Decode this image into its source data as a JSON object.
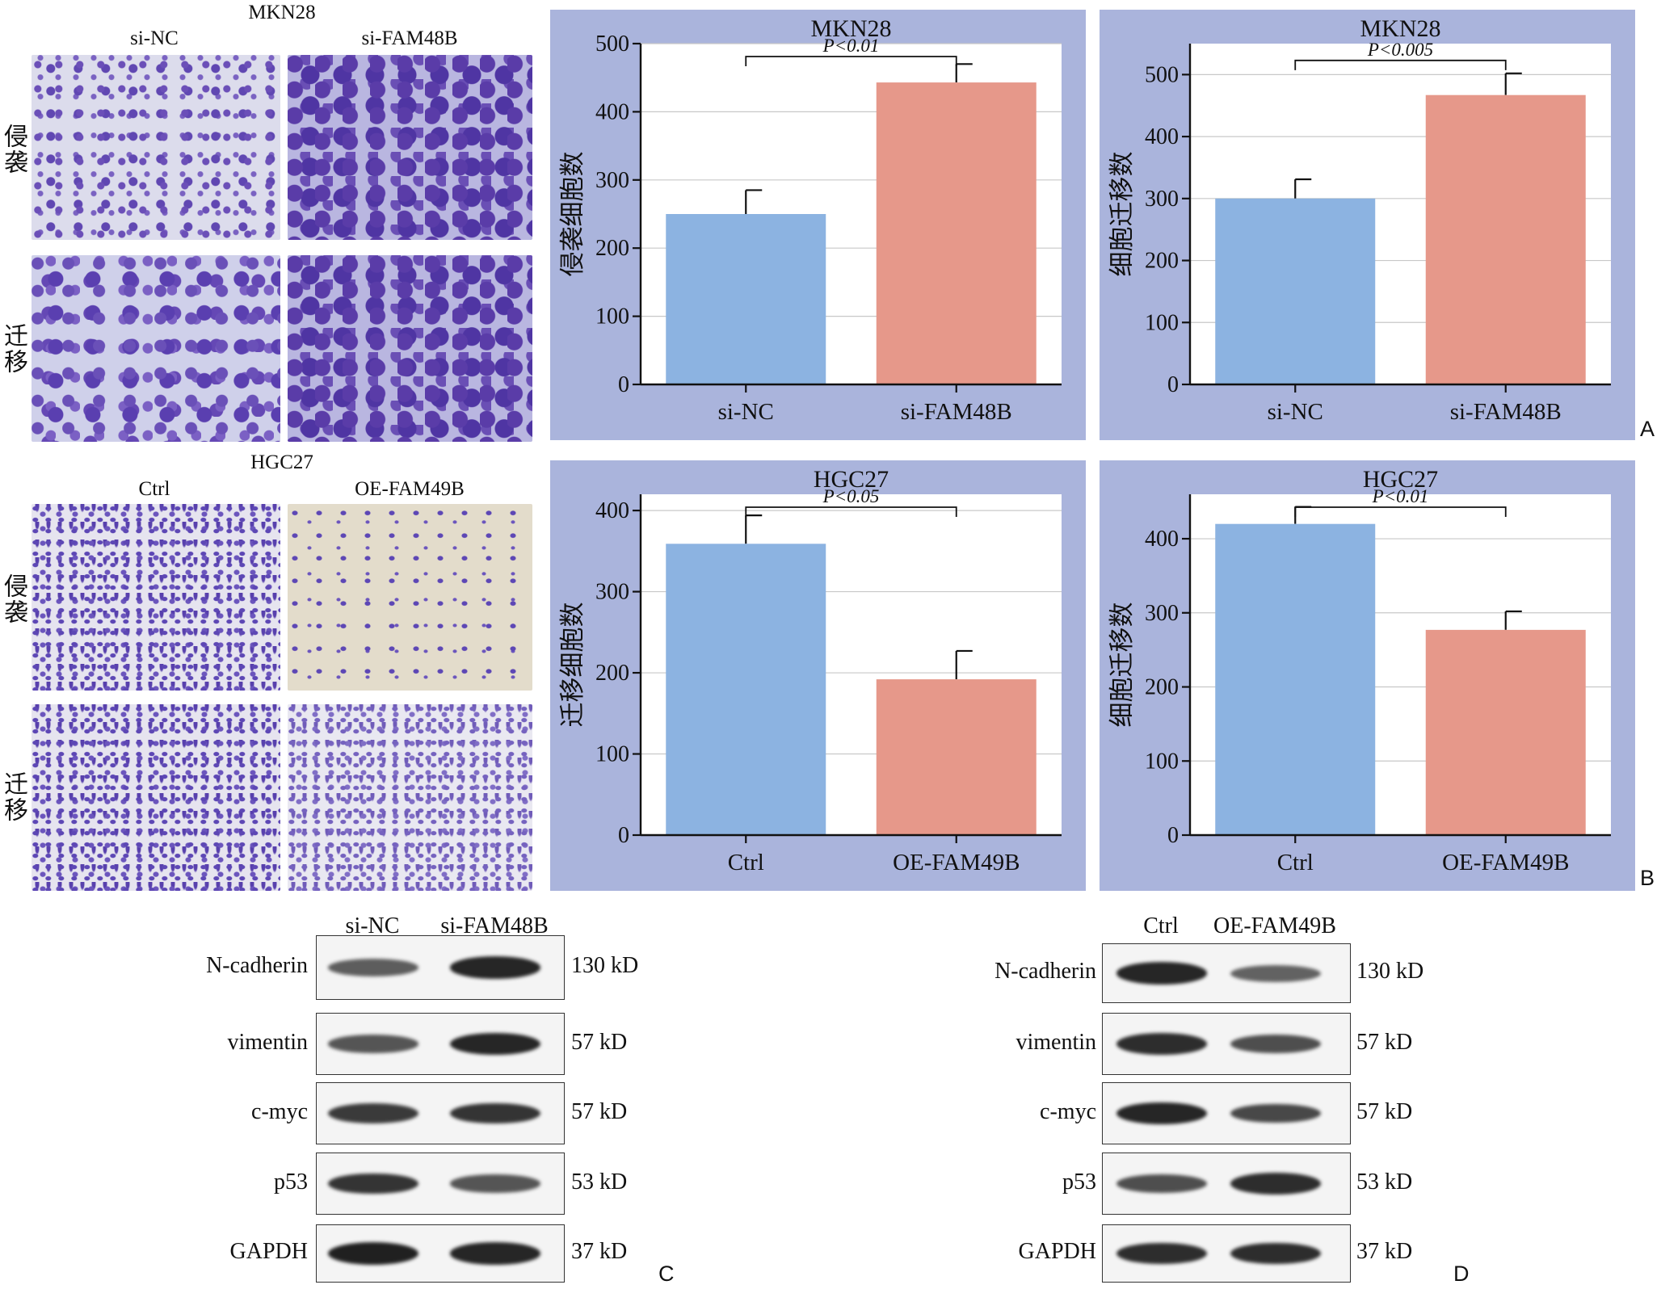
{
  "micrographs": {
    "top": {
      "title": "MKN28",
      "col_labels": [
        "si-NC",
        "si-FAM48B"
      ],
      "row_labels": [
        "侵袭",
        "迁移"
      ]
    },
    "bottom": {
      "title": "HGC27",
      "col_labels": [
        "Ctrl",
        "OE-FAM49B"
      ],
      "row_labels": [
        "侵袭",
        "迁移"
      ]
    }
  },
  "panel_letters": [
    "A",
    "B",
    "C",
    "D"
  ],
  "chart_data": [
    {
      "type": "bar",
      "title": "MKN28",
      "ylabel": "侵袭细胞数",
      "categories": [
        "si-NC",
        "si-FAM48B"
      ],
      "values": [
        250,
        443
      ],
      "errors": [
        35,
        27
      ],
      "ylim": [
        0,
        500
      ],
      "yticks": [
        0,
        100,
        200,
        300,
        400,
        500
      ],
      "significance": "P<0.01",
      "colors": [
        "#8cb3e1",
        "#e6988a"
      ],
      "grid": true
    },
    {
      "type": "bar",
      "title": "MKN28",
      "ylabel": "细胞迁移数",
      "categories": [
        "si-NC",
        "si-FAM48B"
      ],
      "values": [
        300,
        467
      ],
      "errors": [
        31,
        35
      ],
      "ylim": [
        0,
        550
      ],
      "yticks": [
        0,
        100,
        200,
        300,
        400,
        500
      ],
      "significance": "P<0.005",
      "colors": [
        "#8cb3e1",
        "#e6988a"
      ],
      "grid": true
    },
    {
      "type": "bar",
      "title": "HGC27",
      "ylabel": "迁移细胞数",
      "categories": [
        "Ctrl",
        "OE-FAM49B"
      ],
      "values": [
        359,
        192
      ],
      "errors": [
        35,
        35
      ],
      "ylim": [
        0,
        420
      ],
      "yticks": [
        0,
        100,
        200,
        300,
        400
      ],
      "significance": "P<0.05",
      "colors": [
        "#8cb3e1",
        "#e6988a"
      ],
      "grid": true
    },
    {
      "type": "bar",
      "title": "HGC27",
      "ylabel": "细胞迁移数",
      "categories": [
        "Ctrl",
        "OE-FAM49B"
      ],
      "values": [
        420,
        277
      ],
      "errors": [
        23,
        25
      ],
      "ylim": [
        0,
        460
      ],
      "yticks": [
        0,
        100,
        200,
        300,
        400
      ],
      "significance": "P<0.01",
      "colors": [
        "#8cb3e1",
        "#e6988a"
      ],
      "grid": true
    }
  ],
  "blots": {
    "C": {
      "lanes": [
        "si-NC",
        "si-FAM48B"
      ],
      "proteins": [
        "N-cadherin",
        "vimentin",
        "c-myc",
        "p53",
        "GAPDH"
      ],
      "sizes": [
        "130 kD",
        "57 kD",
        "57 kD",
        "53 kD",
        "37 kD"
      ],
      "intensities": [
        [
          0.55,
          0.95
        ],
        [
          0.6,
          0.95
        ],
        [
          0.8,
          0.85
        ],
        [
          0.85,
          0.6
        ],
        [
          1.0,
          0.95
        ]
      ]
    },
    "D": {
      "lanes": [
        "Ctrl",
        "OE-FAM49B"
      ],
      "proteins": [
        "N-cadherin",
        "vimentin",
        "c-myc",
        "p53",
        "GAPDH"
      ],
      "sizes": [
        "130 kD",
        "57 kD",
        "57 kD",
        "53 kD",
        "37 kD"
      ],
      "intensities": [
        [
          0.95,
          0.5
        ],
        [
          0.9,
          0.65
        ],
        [
          0.95,
          0.7
        ],
        [
          0.65,
          0.9
        ],
        [
          0.9,
          0.9
        ]
      ]
    }
  }
}
